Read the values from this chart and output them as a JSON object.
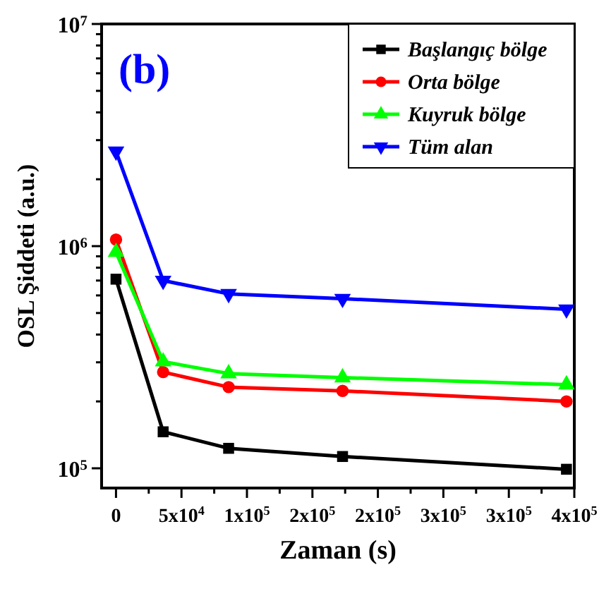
{
  "chart_data": {
    "type": "line",
    "xlabel": "Zaman (s)",
    "ylabel": "OSL Şiddeti (a.u.)",
    "annotations": [
      "(b)"
    ],
    "log": "y",
    "legend": "top right",
    "line_style": "solid",
    "grid": false,
    "xlim": [
      -11000,
      350000
    ],
    "ylim": [
      81500,
      10000000
    ],
    "xticks": [
      {
        "value": 0,
        "label": "0"
      },
      {
        "value": 25000,
        "label": null
      },
      {
        "value": 50000,
        "label": "5x10$^{4}$"
      },
      {
        "value": 75000,
        "label": null
      },
      {
        "value": 100000,
        "label": "1x10$^{5}$"
      },
      {
        "value": 125000,
        "label": null
      },
      {
        "value": 150000,
        "label": "2x10$^{5}$"
      },
      {
        "value": 175000,
        "label": null
      },
      {
        "value": 200000,
        "label": "2x10$^{5}$"
      },
      {
        "value": 225000,
        "label": null
      },
      {
        "value": 250000,
        "label": "3x10$^{5}$"
      },
      {
        "value": 275000,
        "label": null
      },
      {
        "value": 300000,
        "label": "3x10$^{5}$"
      },
      {
        "value": 325000,
        "label": null
      },
      {
        "value": 350000,
        "label": "4x10$^{5}$"
      }
    ],
    "yticks": [
      {
        "value": 100000,
        "label": "10$^{5}$"
      },
      {
        "value": 200000,
        "label": null
      },
      {
        "value": 300000,
        "label": null
      },
      {
        "value": 400000,
        "label": null
      },
      {
        "value": 500000,
        "label": null
      },
      {
        "value": 600000,
        "label": null
      },
      {
        "value": 700000,
        "label": null
      },
      {
        "value": 800000,
        "label": null
      },
      {
        "value": 900000,
        "label": null
      },
      {
        "value": 1000000,
        "label": "10$^{6}$"
      },
      {
        "value": 2000000,
        "label": null
      },
      {
        "value": 3000000,
        "label": null
      },
      {
        "value": 4000000,
        "label": null
      },
      {
        "value": 5000000,
        "label": null
      },
      {
        "value": 6000000,
        "label": null
      },
      {
        "value": 7000000,
        "label": null
      },
      {
        "value": 8000000,
        "label": null
      },
      {
        "value": 9000000,
        "label": null
      },
      {
        "value": 10000000,
        "label": "10$^{7}$"
      }
    ],
    "x": [
      0,
      36000,
      86000,
      173000,
      344000
    ],
    "series": [
      {
        "name": "Başlangıç bölge",
        "color": "#000000",
        "marker": "square",
        "values": [
          710000,
          146000,
          123000,
          113000,
          99000
        ]
      },
      {
        "name": "Orta bölge",
        "color": "#ff0000",
        "marker": "circle",
        "values": [
          1070000,
          271000,
          232000,
          223000,
          200000
        ]
      },
      {
        "name": "Kuyruk bölge",
        "color": "#00ff00",
        "marker": "triangle",
        "values": [
          940000,
          302000,
          267000,
          256000,
          238000
        ]
      },
      {
        "name": "Tüm alan",
        "color": "#0000ff",
        "marker": "triangle-down",
        "values": [
          2670000,
          700000,
          610000,
          580000,
          520000
        ]
      }
    ]
  }
}
